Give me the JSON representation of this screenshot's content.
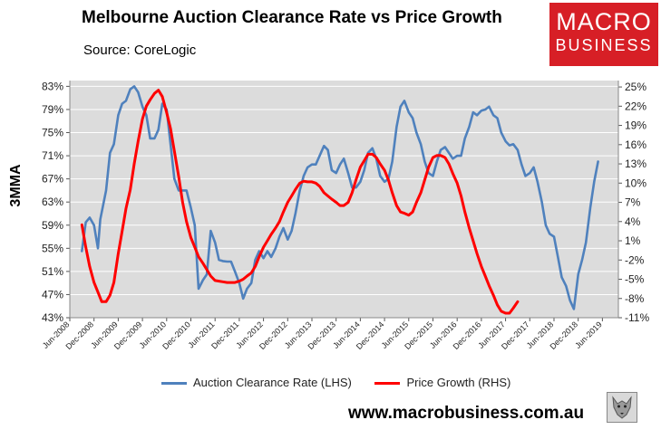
{
  "header": {
    "title": "Melbourne Auction Clearance Rate vs Price Growth",
    "subtitle": "Source: CoreLogic"
  },
  "logo": {
    "line1": "MACRO",
    "line2": "BUSINESS"
  },
  "footer": {
    "url": "www.macrobusiness.com.au"
  },
  "colors": {
    "lhs_series": "#4f81bd",
    "rhs_series": "#ff0000",
    "plot_bg": "#dcdcdc",
    "logo_bg": "#d71f26"
  },
  "chart_data": {
    "type": "line",
    "title": "Melbourne Auction Clearance Rate vs Price Growth",
    "ylabel_left": "3MMA",
    "ylim_left": [
      43,
      84
    ],
    "ylim_right": [
      -11,
      26
    ],
    "yticks_left": [
      83,
      79,
      75,
      71,
      67,
      63,
      59,
      55,
      51,
      47,
      43
    ],
    "yticks_left_labels": [
      "83%",
      "79%",
      "75%",
      "71%",
      "67%",
      "63%",
      "59%",
      "55%",
      "51%",
      "47%",
      "43%"
    ],
    "yticks_right": [
      25,
      22,
      19,
      16,
      13,
      10,
      7,
      4,
      1,
      -2,
      -5,
      -8,
      -11
    ],
    "yticks_right_labels": [
      "25%",
      "22%",
      "19%",
      "16%",
      "13%",
      "10%",
      "7%",
      "4%",
      "1%",
      "-2%",
      "-5%",
      "-8%",
      "-11%"
    ],
    "x_range": [
      2008.42,
      2019.75
    ],
    "xticks": [
      2008.42,
      2008.92,
      2009.42,
      2009.92,
      2010.42,
      2010.92,
      2011.42,
      2011.92,
      2012.42,
      2012.92,
      2013.42,
      2013.92,
      2014.42,
      2014.92,
      2015.42,
      2015.92,
      2016.42,
      2016.92,
      2017.42,
      2017.92,
      2018.42,
      2018.92,
      2019.42
    ],
    "xtick_labels": [
      "Jun-2008",
      "Dec-2008",
      "Jun-2009",
      "Dec-2009",
      "Jun-2010",
      "Dec-2010",
      "Jun-2011",
      "Dec-2011",
      "Jun-2012",
      "Dec-2012",
      "Jun-2013",
      "Dec-2013",
      "Jun-2014",
      "Dec-2014",
      "Jun-2015",
      "Dec-2015",
      "Jun-2016",
      "Dec-2016",
      "Jun-2017",
      "Dec-2017",
      "Jun-2018",
      "Dec-2018",
      "Jun-2019"
    ],
    "grid": true,
    "legend_position": "bottom",
    "series": [
      {
        "name": "Auction Clearance Rate (LHS)",
        "axis": "left",
        "color": "#4f81bd",
        "points": [
          [
            2008.67,
            54.5
          ],
          [
            2008.75,
            59.5
          ],
          [
            2008.83,
            60.3
          ],
          [
            2008.92,
            59
          ],
          [
            2009.0,
            55
          ],
          [
            2009.05,
            60
          ],
          [
            2009.17,
            65
          ],
          [
            2009.25,
            71.5
          ],
          [
            2009.33,
            73
          ],
          [
            2009.42,
            78
          ],
          [
            2009.5,
            80
          ],
          [
            2009.58,
            80.5
          ],
          [
            2009.67,
            82.5
          ],
          [
            2009.75,
            83
          ],
          [
            2009.83,
            82
          ],
          [
            2009.92,
            79.5
          ],
          [
            2010.0,
            78
          ],
          [
            2010.08,
            74
          ],
          [
            2010.17,
            74
          ],
          [
            2010.25,
            75.5
          ],
          [
            2010.33,
            80
          ],
          [
            2010.42,
            79
          ],
          [
            2010.5,
            73
          ],
          [
            2010.58,
            67
          ],
          [
            2010.67,
            65
          ],
          [
            2010.75,
            65
          ],
          [
            2010.83,
            65
          ],
          [
            2010.92,
            62
          ],
          [
            2011.0,
            59
          ],
          [
            2011.08,
            48
          ],
          [
            2011.17,
            49.5
          ],
          [
            2011.25,
            50.5
          ],
          [
            2011.33,
            58
          ],
          [
            2011.42,
            56
          ],
          [
            2011.5,
            53
          ],
          [
            2011.58,
            52.8
          ],
          [
            2011.67,
            52.7
          ],
          [
            2011.75,
            52.7
          ],
          [
            2011.83,
            51
          ],
          [
            2011.92,
            49
          ],
          [
            2012.0,
            46.3
          ],
          [
            2012.08,
            48
          ],
          [
            2012.17,
            49
          ],
          [
            2012.25,
            53
          ],
          [
            2012.33,
            54.5
          ],
          [
            2012.42,
            53.3
          ],
          [
            2012.5,
            54.5
          ],
          [
            2012.58,
            53.5
          ],
          [
            2012.67,
            55
          ],
          [
            2012.75,
            57
          ],
          [
            2012.83,
            58.5
          ],
          [
            2012.92,
            56.5
          ],
          [
            2013.0,
            58
          ],
          [
            2013.08,
            61
          ],
          [
            2013.17,
            65
          ],
          [
            2013.25,
            67.5
          ],
          [
            2013.33,
            69
          ],
          [
            2013.42,
            69.5
          ],
          [
            2013.5,
            69.5
          ],
          [
            2013.58,
            71
          ],
          [
            2013.67,
            72.7
          ],
          [
            2013.75,
            72
          ],
          [
            2013.83,
            68.5
          ],
          [
            2013.92,
            68
          ],
          [
            2014.0,
            69.5
          ],
          [
            2014.08,
            70.5
          ],
          [
            2014.17,
            68
          ],
          [
            2014.25,
            65.5
          ],
          [
            2014.33,
            65.5
          ],
          [
            2014.42,
            66.5
          ],
          [
            2014.5,
            68.5
          ],
          [
            2014.58,
            71.5
          ],
          [
            2014.67,
            72.3
          ],
          [
            2014.75,
            70.5
          ],
          [
            2014.83,
            67.5
          ],
          [
            2014.92,
            66.5
          ],
          [
            2015.0,
            67
          ],
          [
            2015.08,
            70
          ],
          [
            2015.17,
            76
          ],
          [
            2015.25,
            79.5
          ],
          [
            2015.33,
            80.5
          ],
          [
            2015.42,
            78.5
          ],
          [
            2015.5,
            77.5
          ],
          [
            2015.58,
            75
          ],
          [
            2015.67,
            73
          ],
          [
            2015.75,
            70
          ],
          [
            2015.83,
            68
          ],
          [
            2015.92,
            67.5
          ],
          [
            2016.0,
            70
          ],
          [
            2016.08,
            72
          ],
          [
            2016.17,
            72.5
          ],
          [
            2016.25,
            71.5
          ],
          [
            2016.33,
            70.5
          ],
          [
            2016.42,
            71
          ],
          [
            2016.5,
            71
          ],
          [
            2016.58,
            74
          ],
          [
            2016.67,
            76
          ],
          [
            2016.75,
            78.5
          ],
          [
            2016.83,
            78
          ],
          [
            2016.92,
            78.8
          ],
          [
            2017.0,
            79
          ],
          [
            2017.08,
            79.5
          ],
          [
            2017.17,
            78
          ],
          [
            2017.25,
            77.5
          ],
          [
            2017.33,
            75
          ],
          [
            2017.42,
            73.5
          ],
          [
            2017.5,
            72.8
          ],
          [
            2017.58,
            73
          ],
          [
            2017.67,
            72
          ],
          [
            2017.75,
            69.5
          ],
          [
            2017.83,
            67.5
          ],
          [
            2017.92,
            68
          ],
          [
            2018.0,
            69
          ],
          [
            2018.08,
            66.5
          ],
          [
            2018.17,
            63
          ],
          [
            2018.25,
            59
          ],
          [
            2018.33,
            57.5
          ],
          [
            2018.42,
            57
          ],
          [
            2018.5,
            53.5
          ],
          [
            2018.58,
            50
          ],
          [
            2018.67,
            48.5
          ],
          [
            2018.75,
            46
          ],
          [
            2018.83,
            44.5
          ],
          [
            2018.92,
            50.5
          ],
          [
            2019.0,
            53
          ],
          [
            2019.08,
            56
          ],
          [
            2019.17,
            62
          ],
          [
            2019.25,
            66.5
          ],
          [
            2019.33,
            70
          ]
        ]
      },
      {
        "name": "Price Growth (RHS)",
        "axis": "right",
        "color": "#ff0000",
        "points": [
          [
            2008.67,
            3.5
          ],
          [
            2008.75,
            0
          ],
          [
            2008.83,
            -3
          ],
          [
            2008.92,
            -5.5
          ],
          [
            2009.0,
            -7
          ],
          [
            2009.08,
            -8.5
          ],
          [
            2009.17,
            -8.5
          ],
          [
            2009.25,
            -7.5
          ],
          [
            2009.33,
            -5.5
          ],
          [
            2009.42,
            -1
          ],
          [
            2009.5,
            2.5
          ],
          [
            2009.58,
            6
          ],
          [
            2009.67,
            9
          ],
          [
            2009.75,
            13
          ],
          [
            2009.83,
            16.5
          ],
          [
            2009.92,
            20
          ],
          [
            2010.0,
            22
          ],
          [
            2010.08,
            23
          ],
          [
            2010.17,
            24
          ],
          [
            2010.25,
            24.5
          ],
          [
            2010.33,
            23.5
          ],
          [
            2010.42,
            21
          ],
          [
            2010.5,
            18.5
          ],
          [
            2010.58,
            15
          ],
          [
            2010.67,
            11
          ],
          [
            2010.75,
            7
          ],
          [
            2010.83,
            4
          ],
          [
            2010.92,
            1.5
          ],
          [
            2011.0,
            0
          ],
          [
            2011.08,
            -1.5
          ],
          [
            2011.17,
            -2.5
          ],
          [
            2011.25,
            -3.5
          ],
          [
            2011.33,
            -4.5
          ],
          [
            2011.42,
            -5.2
          ],
          [
            2011.5,
            -5.3
          ],
          [
            2011.58,
            -5.4
          ],
          [
            2011.67,
            -5.5
          ],
          [
            2011.75,
            -5.5
          ],
          [
            2011.83,
            -5.5
          ],
          [
            2011.92,
            -5.3
          ],
          [
            2012.0,
            -5
          ],
          [
            2012.08,
            -4.5
          ],
          [
            2012.17,
            -4
          ],
          [
            2012.25,
            -3
          ],
          [
            2012.33,
            -1.5
          ],
          [
            2012.42,
            0
          ],
          [
            2012.5,
            1
          ],
          [
            2012.58,
            2
          ],
          [
            2012.67,
            3
          ],
          [
            2012.75,
            4
          ],
          [
            2012.83,
            5.5
          ],
          [
            2012.92,
            7
          ],
          [
            2013.0,
            8
          ],
          [
            2013.08,
            9
          ],
          [
            2013.17,
            10
          ],
          [
            2013.25,
            10.3
          ],
          [
            2013.33,
            10.2
          ],
          [
            2013.42,
            10.2
          ],
          [
            2013.5,
            10
          ],
          [
            2013.58,
            9.5
          ],
          [
            2013.67,
            8.5
          ],
          [
            2013.75,
            8
          ],
          [
            2013.83,
            7.5
          ],
          [
            2013.92,
            7
          ],
          [
            2014.0,
            6.5
          ],
          [
            2014.08,
            6.5
          ],
          [
            2014.17,
            7
          ],
          [
            2014.25,
            8.5
          ],
          [
            2014.33,
            10.5
          ],
          [
            2014.42,
            12.5
          ],
          [
            2014.5,
            13.5
          ],
          [
            2014.58,
            14.5
          ],
          [
            2014.67,
            14.5
          ],
          [
            2014.75,
            14
          ],
          [
            2014.83,
            13
          ],
          [
            2014.92,
            12
          ],
          [
            2015.0,
            10.5
          ],
          [
            2015.08,
            8.5
          ],
          [
            2015.17,
            6.5
          ],
          [
            2015.25,
            5.5
          ],
          [
            2015.33,
            5.3
          ],
          [
            2015.42,
            5
          ],
          [
            2015.5,
            5.5
          ],
          [
            2015.58,
            7
          ],
          [
            2015.67,
            8.5
          ],
          [
            2015.75,
            10.5
          ],
          [
            2015.83,
            12.5
          ],
          [
            2015.92,
            14
          ],
          [
            2016.0,
            14.3
          ],
          [
            2016.08,
            14.3
          ],
          [
            2016.17,
            14
          ],
          [
            2016.25,
            13
          ],
          [
            2016.33,
            11.5
          ],
          [
            2016.42,
            10
          ],
          [
            2016.5,
            8
          ],
          [
            2016.58,
            5.5
          ],
          [
            2016.67,
            3
          ],
          [
            2016.75,
            1
          ],
          [
            2016.83,
            -1
          ],
          [
            2016.92,
            -3
          ],
          [
            2017.0,
            -4.5
          ],
          [
            2017.08,
            -6
          ],
          [
            2017.17,
            -7.5
          ],
          [
            2017.25,
            -9
          ],
          [
            2017.33,
            -10
          ],
          [
            2017.42,
            -10.3
          ],
          [
            2017.5,
            -10.3
          ],
          [
            2017.58,
            -9.5
          ],
          [
            2017.67,
            -8.5
          ]
        ]
      }
    ]
  }
}
